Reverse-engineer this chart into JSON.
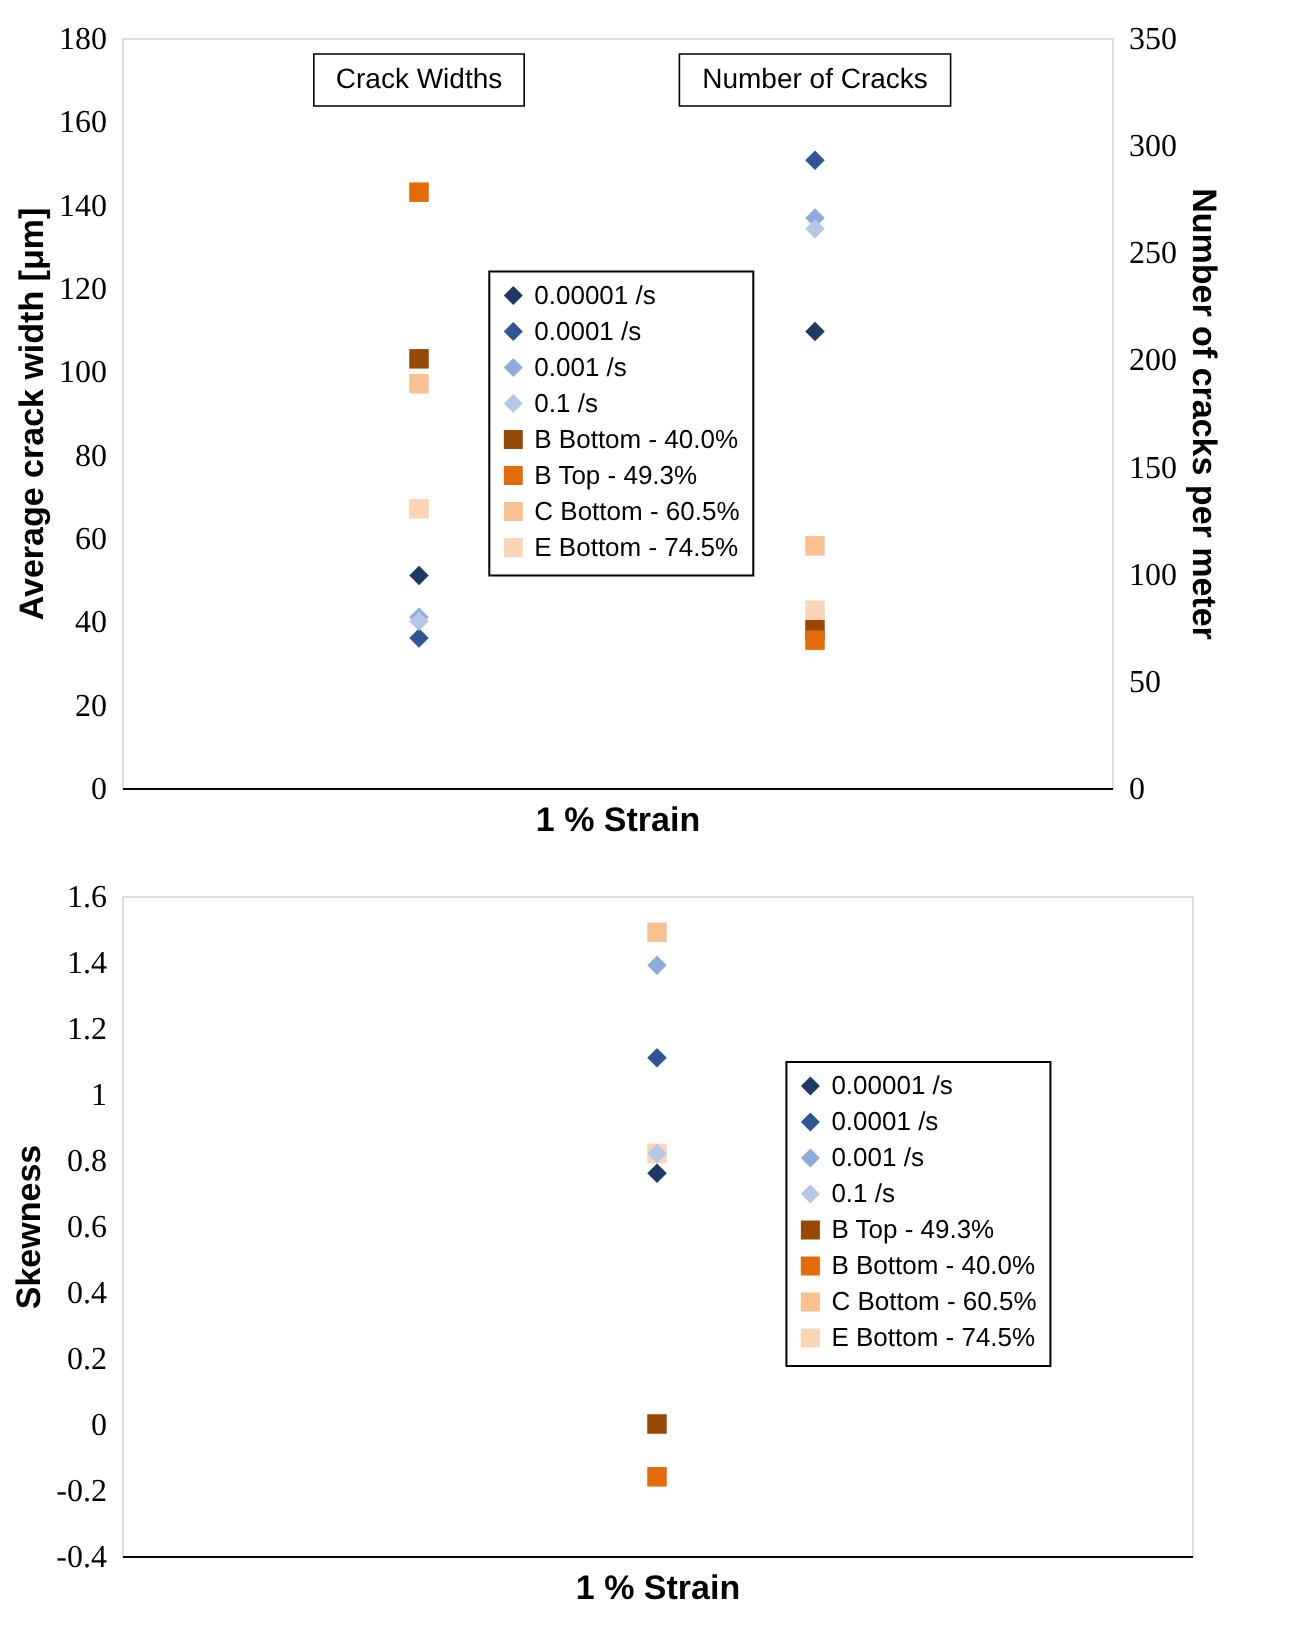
{
  "chart_data": [
    {
      "type": "scatter",
      "categories": [
        null,
        null
      ],
      "xlabel": "1 % Strain",
      "ylabel": "Average crack width [μm]",
      "y2label": "Number of cracks per meter",
      "ylim": [
        0,
        180
      ],
      "yticks": [
        0,
        20,
        40,
        60,
        80,
        100,
        120,
        140,
        160,
        180
      ],
      "y2lim": [
        0,
        350
      ],
      "y2ticks": [
        0,
        50,
        100,
        150,
        200,
        250,
        300,
        350
      ],
      "annotations": [
        "Crack Widths",
        "Number of Cracks"
      ],
      "legend": "center",
      "tick_labels": "y",
      "grid": false,
      "series": [
        {
          "name": "0.00001 /s",
          "color": "#203864",
          "marker": "diamond",
          "values": [
            51,
            null
          ]
        },
        {
          "name": "0.0001 /s",
          "color": "#2f5597",
          "marker": "diamond",
          "values": [
            36,
            null
          ]
        },
        {
          "name": "0.001 /s",
          "color": "#8faadc",
          "marker": "diamond",
          "values": [
            41,
            null
          ]
        },
        {
          "name": "0.1 /s",
          "color": "#b4c7e7",
          "marker": "diamond",
          "values": [
            40,
            null
          ]
        },
        {
          "name": "B Bottom - 40.0%",
          "color": "#974706",
          "marker": "square",
          "values": [
            103,
            null
          ]
        },
        {
          "name": "B Top - 49.3%",
          "color": "#e36c09",
          "marker": "square",
          "values": [
            143,
            null
          ]
        },
        {
          "name": "C Bottom - 60.5%",
          "color": "#fac090",
          "marker": "square",
          "values": [
            97,
            null
          ]
        },
        {
          "name": "E Bottom - 74.5%",
          "color": "#fcd5b5",
          "marker": "square",
          "values": [
            67,
            null
          ]
        },
        {
          "color": "#203864",
          "marker": "diamond",
          "axis": "y2",
          "values": [
            null,
            213
          ]
        },
        {
          "color": "#2f5597",
          "marker": "diamond",
          "axis": "y2",
          "values": [
            null,
            293
          ]
        },
        {
          "color": "#8faadc",
          "marker": "diamond",
          "axis": "y2",
          "values": [
            null,
            266
          ]
        },
        {
          "color": "#b4c7e7",
          "marker": "diamond",
          "axis": "y2",
          "values": [
            null,
            261
          ]
        },
        {
          "color": "#974706",
          "marker": "square",
          "axis": "y2",
          "values": [
            null,
            74
          ]
        },
        {
          "color": "#e36c09",
          "marker": "square",
          "axis": "y2",
          "values": [
            null,
            69
          ]
        },
        {
          "color": "#fac090",
          "marker": "square",
          "axis": "y2",
          "values": [
            null,
            113
          ]
        },
        {
          "color": "#fcd5b5",
          "marker": "square",
          "axis": "y2",
          "values": [
            null,
            83
          ]
        }
      ]
    },
    {
      "type": "scatter",
      "categories": [
        null
      ],
      "xlabel": "1 % Strain",
      "ylabel": "Skewness",
      "ylim": [
        -0.4,
        1.6
      ],
      "yticks": [
        -0.4,
        -0.2,
        0,
        0.2,
        0.4,
        0.6,
        0.8,
        1,
        1.2,
        1.4,
        1.6
      ],
      "legend": "right",
      "tick_labels": "y",
      "grid": false,
      "series": [
        {
          "name": "0.00001 /s",
          "color": "#203864",
          "marker": "diamond",
          "values": [
            0.76
          ]
        },
        {
          "name": "0.0001 /s",
          "color": "#2f5597",
          "marker": "diamond",
          "values": [
            1.11
          ]
        },
        {
          "name": "0.001 /s",
          "color": "#8faadc",
          "marker": "diamond",
          "values": [
            1.39
          ]
        },
        {
          "name": "0.1 /s",
          "color": "#b4c7e7",
          "marker": "diamond",
          "values": [
            0.82
          ]
        },
        {
          "name": "B Top - 49.3%",
          "color": "#974706",
          "marker": "square",
          "values": [
            0.0
          ]
        },
        {
          "name": "B Bottom - 40.0%",
          "color": "#e36c09",
          "marker": "square",
          "values": [
            -0.16
          ]
        },
        {
          "name": "C Bottom - 60.5%",
          "color": "#fac090",
          "marker": "square",
          "values": [
            1.49
          ]
        },
        {
          "name": "E Bottom - 74.5%",
          "color": "#fcd5b5",
          "marker": "square",
          "values": [
            0.82
          ]
        }
      ]
    }
  ]
}
